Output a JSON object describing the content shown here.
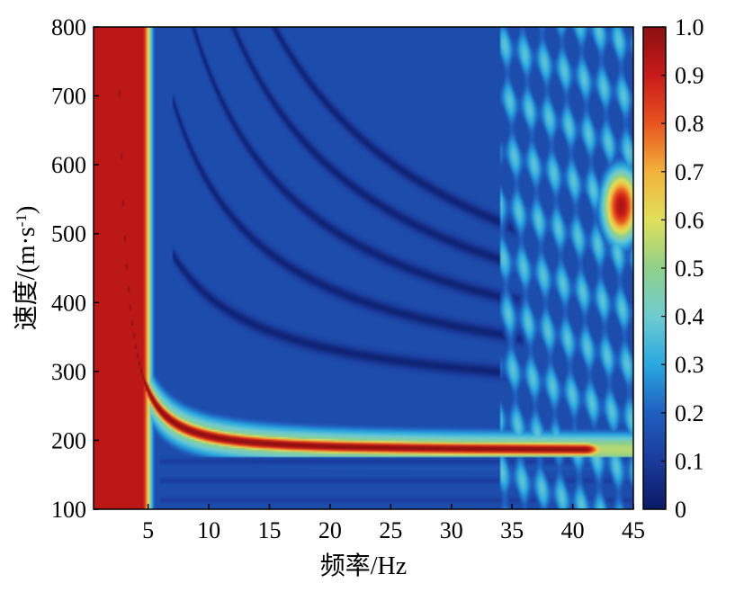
{
  "chart_data": {
    "type": "heatmap",
    "title": "",
    "xlabel": "频率/Hz",
    "ylabel": "速度/(m·s-1)",
    "ylabel_parts": {
      "main": "速度/(m·s",
      "sup": "-1",
      "close": ")"
    },
    "xlim": [
      0.5,
      45
    ],
    "ylim": [
      100,
      800
    ],
    "x_ticks": [
      5,
      10,
      15,
      20,
      25,
      30,
      35,
      40,
      45
    ],
    "y_ticks": [
      100,
      200,
      300,
      400,
      500,
      600,
      700,
      800
    ],
    "colorbar": {
      "range": [
        0,
        1
      ],
      "ticks": [
        "0",
        "0.1",
        "0.2",
        "0.3",
        "0.4",
        "0.5",
        "0.6",
        "0.7",
        "0.8",
        "0.9",
        "1.0"
      ],
      "colormap": "jet-like",
      "colors": [
        "#0a1a66",
        "#1a3a9a",
        "#1f5fbf",
        "#2aa8e0",
        "#6ecbd0",
        "#8fd08a",
        "#e0e05a",
        "#f2b23c",
        "#e8541f",
        "#c81a1a",
        "#8b1010"
      ]
    },
    "features": {
      "fundamental_mode_velocity": 185,
      "fundamental_mode_end_frequency": 41,
      "low_frequency_ridge_range": [
        1,
        4.5
      ],
      "background_level": 0.15,
      "high_frequency_hotspot": {
        "frequency": 44,
        "velocity": 540,
        "value": 0.95
      }
    }
  }
}
